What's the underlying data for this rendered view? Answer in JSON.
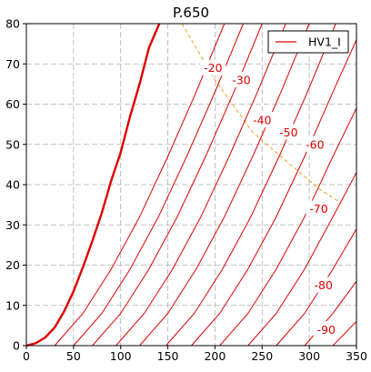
{
  "chart_data": {
    "type": "line",
    "title": "P.650",
    "xlabel": "",
    "ylabel": "",
    "xlim": [
      0,
      350
    ],
    "ylim": [
      0,
      80
    ],
    "xticks": [
      0,
      50,
      100,
      150,
      200,
      250,
      300,
      350
    ],
    "yticks": [
      0,
      10,
      20,
      30,
      40,
      50,
      60,
      70,
      80
    ],
    "grid": true,
    "legend": {
      "position": "top-right",
      "entries": [
        {
          "label": "HV1_I",
          "color": "#dd0000"
        }
      ]
    },
    "series": [
      {
        "name": "HV1_I",
        "style": "bold",
        "color": "#dd0000",
        "points": [
          [
            0,
            0
          ],
          [
            10,
            0.6
          ],
          [
            20,
            2
          ],
          [
            30,
            4.5
          ],
          [
            40,
            8.5
          ],
          [
            50,
            13.5
          ],
          [
            60,
            19.5
          ],
          [
            70,
            26
          ],
          [
            80,
            33
          ],
          [
            90,
            41
          ],
          [
            100,
            48
          ],
          [
            110,
            57
          ],
          [
            120,
            65
          ],
          [
            130,
            74
          ],
          [
            141,
            80
          ]
        ]
      }
    ],
    "contours": [
      {
        "label": "",
        "points": [
          [
            30,
            0
          ],
          [
            60,
            8
          ],
          [
            90,
            19
          ],
          [
            120,
            32
          ],
          [
            150,
            47
          ],
          [
            180,
            63
          ],
          [
            210,
            80
          ]
        ]
      },
      {
        "label": "-20",
        "points": [
          [
            50,
            0
          ],
          [
            80,
            8
          ],
          [
            110,
            19
          ],
          [
            140,
            32
          ],
          [
            170,
            47
          ],
          [
            200,
            63
          ],
          [
            230,
            80
          ]
        ]
      },
      {
        "label": "-30",
        "points": [
          [
            70,
            0
          ],
          [
            100,
            8
          ],
          [
            130,
            19
          ],
          [
            160,
            32
          ],
          [
            190,
            47
          ],
          [
            220,
            63
          ],
          [
            250,
            80
          ]
        ]
      },
      {
        "label": "-40",
        "points": [
          [
            95,
            0
          ],
          [
            125,
            8
          ],
          [
            155,
            19
          ],
          [
            185,
            32
          ],
          [
            215,
            47
          ],
          [
            245,
            63
          ],
          [
            275,
            80
          ]
        ]
      },
      {
        "label": "-50",
        "points": [
          [
            120,
            0
          ],
          [
            150,
            8
          ],
          [
            180,
            19
          ],
          [
            210,
            32
          ],
          [
            240,
            47
          ],
          [
            270,
            63
          ],
          [
            300,
            80
          ]
        ]
      },
      {
        "label": "-60",
        "points": [
          [
            148,
            0
          ],
          [
            178,
            8
          ],
          [
            208,
            19
          ],
          [
            238,
            32
          ],
          [
            268,
            47
          ],
          [
            298,
            63
          ],
          [
            328,
            80
          ]
        ]
      },
      {
        "label": "-70",
        "points": [
          [
            175,
            0
          ],
          [
            205,
            8
          ],
          [
            235,
            19
          ],
          [
            265,
            32
          ],
          [
            295,
            47
          ],
          [
            325,
            63
          ],
          [
            350,
            76
          ]
        ]
      },
      {
        "label": "",
        "points": [
          [
            205,
            0
          ],
          [
            235,
            8
          ],
          [
            265,
            19
          ],
          [
            295,
            32
          ],
          [
            325,
            47
          ],
          [
            350,
            59
          ]
        ]
      },
      {
        "label": "-80",
        "points": [
          [
            235,
            0
          ],
          [
            265,
            8
          ],
          [
            295,
            19
          ],
          [
            325,
            32
          ],
          [
            350,
            43
          ]
        ]
      },
      {
        "label": "",
        "points": [
          [
            265,
            0
          ],
          [
            295,
            8
          ],
          [
            325,
            19
          ],
          [
            350,
            29
          ]
        ]
      },
      {
        "label": "-90",
        "points": [
          [
            295,
            0
          ],
          [
            325,
            8
          ],
          [
            350,
            16
          ]
        ]
      },
      {
        "label": "",
        "points": [
          [
            325,
            0
          ],
          [
            350,
            6
          ]
        ]
      }
    ],
    "contour_labels": [
      {
        "text": "-20",
        "x": 198,
        "y": 69
      },
      {
        "text": "-30",
        "x": 228,
        "y": 66
      },
      {
        "text": "-40",
        "x": 250,
        "y": 56
      },
      {
        "text": "-50",
        "x": 278,
        "y": 53
      },
      {
        "text": "-60",
        "x": 306,
        "y": 50
      },
      {
        "text": "-70",
        "x": 310,
        "y": 34
      },
      {
        "text": "-80",
        "x": 315,
        "y": 15
      },
      {
        "text": "-90",
        "x": 318,
        "y": 4
      }
    ],
    "ridge_line": {
      "color": "#e8a020",
      "style": "dashed",
      "points": [
        [
          165,
          80
        ],
        [
          200,
          66
        ],
        [
          240,
          53
        ],
        [
          280,
          45
        ],
        [
          310,
          39
        ],
        [
          330,
          36
        ]
      ]
    }
  }
}
